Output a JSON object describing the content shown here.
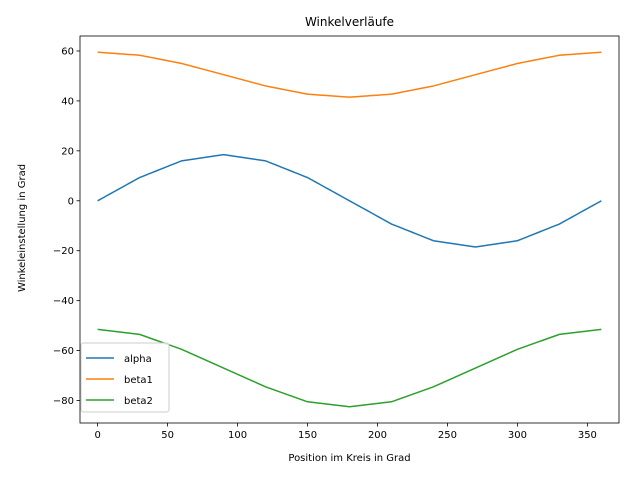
{
  "chart_data": {
    "type": "line",
    "title": "Winkelverläufe",
    "xlabel": "Position im Kreis in Grad",
    "ylabel": "Winkeleinstellung in Grad",
    "xlim": [
      -12.6,
      372.6
    ],
    "ylim": [
      -89.0,
      66.0
    ],
    "xticks": [
      0,
      50,
      100,
      150,
      200,
      250,
      300,
      350
    ],
    "yticks": [
      -80,
      -60,
      -40,
      -20,
      0,
      20,
      40,
      60
    ],
    "grid": false,
    "legend_position": "lower-left",
    "x": [
      0,
      30,
      60,
      90,
      120,
      150,
      180,
      210,
      240,
      270,
      300,
      330,
      360
    ],
    "series": [
      {
        "name": "alpha",
        "color": "#1f77b4",
        "values": [
          0,
          9.3,
          16.0,
          18.5,
          16.0,
          9.3,
          0,
          -9.3,
          -16.0,
          -18.5,
          -16.0,
          -9.3,
          0
        ]
      },
      {
        "name": "beta1",
        "color": "#ff7f0e",
        "values": [
          59.5,
          58.3,
          55.0,
          50.5,
          46.0,
          42.7,
          41.5,
          42.7,
          46.0,
          50.5,
          55.0,
          58.3,
          59.5
        ]
      },
      {
        "name": "beta2",
        "color": "#2ca02c",
        "values": [
          -51.5,
          -53.5,
          -59.5,
          -67.0,
          -74.5,
          -80.5,
          -82.5,
          -80.5,
          -74.5,
          -67.0,
          -59.5,
          -53.5,
          -51.5
        ]
      }
    ]
  }
}
